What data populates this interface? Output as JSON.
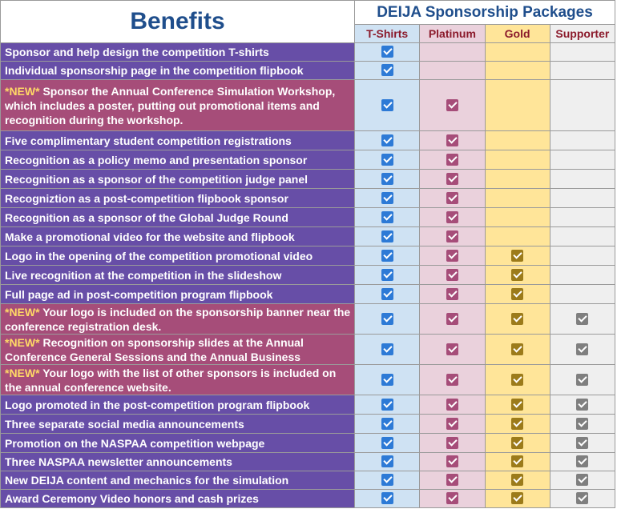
{
  "title": "Benefits",
  "packages_title": "DEIJA Sponsorship Packages",
  "columns": [
    "T-Shirts",
    "Platinum",
    "Gold",
    "Supporter"
  ],
  "rows": [
    {
      "prefix": "",
      "text": "Sponsor and help design the competition T-shirts",
      "checks": [
        true,
        false,
        false,
        false
      ]
    },
    {
      "prefix": "",
      "text": "Individual sponsorship page in the competition flipbook",
      "checks": [
        true,
        false,
        false,
        false
      ]
    },
    {
      "prefix": "*NEW*",
      "text": " Sponsor the Annual Conference Simulation Workshop, which includes a poster, putting out promotional items and recognition during the workshop.",
      "checks": [
        true,
        true,
        false,
        false
      ]
    },
    {
      "prefix": "",
      "text": "Five complimentary student competition registrations",
      "checks": [
        true,
        true,
        false,
        false
      ]
    },
    {
      "prefix": "",
      "text": "Recognition as a policy memo and presentation sponsor",
      "checks": [
        true,
        true,
        false,
        false
      ]
    },
    {
      "prefix": "",
      "text": "Recognition as a sponsor of the competition judge panel",
      "checks": [
        true,
        true,
        false,
        false
      ]
    },
    {
      "prefix": "",
      "text": "Recogniztion as a post-competition flipbook sponsor",
      "checks": [
        true,
        true,
        false,
        false
      ]
    },
    {
      "prefix": "",
      "text": "Recognition as a sponsor of the Global Judge Round",
      "checks": [
        true,
        true,
        false,
        false
      ]
    },
    {
      "prefix": "",
      "text": "Make a promotional video for the website and flipbook",
      "checks": [
        true,
        true,
        false,
        false
      ]
    },
    {
      "prefix": "",
      "text": "Logo in the opening of the competition promotional video",
      "checks": [
        true,
        true,
        true,
        false
      ]
    },
    {
      "prefix": "",
      "text": "Live recognition at the competition in the slideshow",
      "checks": [
        true,
        true,
        true,
        false
      ]
    },
    {
      "prefix": "",
      "text": "Full page ad in post-competition program flipbook",
      "checks": [
        true,
        true,
        true,
        false
      ]
    },
    {
      "prefix": "*NEW*",
      "text": " Your logo is included on the sponsorship banner near the conference registration desk.",
      "checks": [
        true,
        true,
        true,
        true
      ]
    },
    {
      "prefix": "*NEW*",
      "text": " Recognition on sponsorship slides at the Annual Conference General Sessions and the Annual Business",
      "checks": [
        true,
        true,
        true,
        true
      ]
    },
    {
      "prefix": "*NEW*",
      "text": " Your logo with the list of other sponsors is included on the annual conference website.",
      "checks": [
        true,
        true,
        true,
        true
      ]
    },
    {
      "prefix": "",
      "text": "Logo promoted in the post-competition program flipbook",
      "checks": [
        true,
        true,
        true,
        true
      ]
    },
    {
      "prefix": "",
      "text": "Three separate social media announcements",
      "checks": [
        true,
        true,
        true,
        true
      ]
    },
    {
      "prefix": "",
      "text": "Promotion on the NASPAA competition webpage",
      "checks": [
        true,
        true,
        true,
        true
      ]
    },
    {
      "prefix": "",
      "text": "Three NASPAA newsletter announcements",
      "checks": [
        true,
        true,
        true,
        true
      ]
    },
    {
      "prefix": "",
      "text": "New DEIJA content and mechanics for the simulation",
      "checks": [
        true,
        true,
        true,
        true
      ]
    },
    {
      "prefix": "",
      "text": "Award Ceremony Video honors and cash prizes",
      "checks": [
        true,
        true,
        true,
        true
      ]
    }
  ]
}
